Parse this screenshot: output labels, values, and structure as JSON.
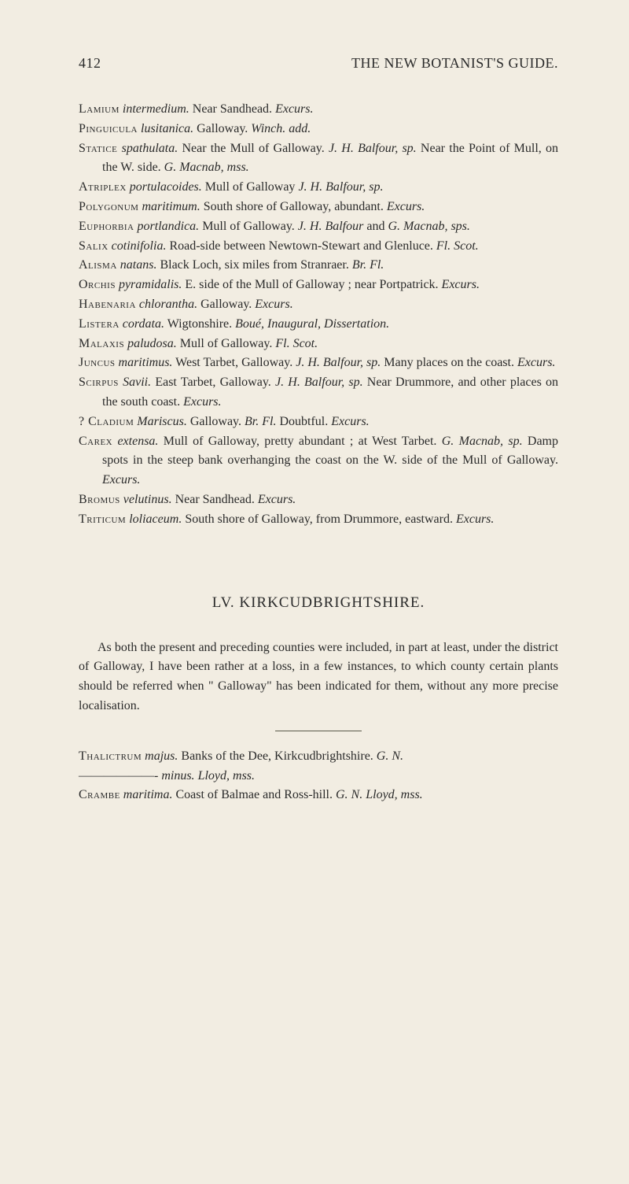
{
  "header": {
    "page_number": "412",
    "running_title": "THE NEW BOTANIST'S GUIDE."
  },
  "entries": [
    {
      "genus": "Lamium",
      "species": "intermedium.",
      "text": "Near Sandhead.",
      "auth": "Excurs."
    },
    {
      "genus": "Pinguicula",
      "species": "lusitanica.",
      "text": "Galloway.",
      "auth": "Winch. add."
    },
    {
      "genus": "Statice",
      "species": "spathulata.",
      "text_parts": [
        {
          "plain": "Near the Mull of Galloway. "
        },
        {
          "ital": "J. H. Balfour, sp."
        },
        {
          "plain": " Near the Point of Mull, on the W. side. "
        },
        {
          "ital": "G. Macnab, mss."
        }
      ]
    },
    {
      "genus": "Atriplex",
      "species": "portulacoides.",
      "text": "Mull of Galloway",
      "auth": "J. H. Balfour, sp."
    },
    {
      "genus": "Polygonum",
      "species": "maritimum.",
      "text": "South shore of Galloway, abundant.",
      "auth": "Excurs."
    },
    {
      "genus": "Euphorbia",
      "species": "portlandica.",
      "text_parts": [
        {
          "plain": "Mull of Galloway. "
        },
        {
          "ital": "J. H. Balfour"
        },
        {
          "plain": " and "
        },
        {
          "ital": "G. Macnab, sps."
        }
      ]
    },
    {
      "genus": "Salix",
      "species": "cotinifolia.",
      "text": "Road-side between Newtown-Stewart and Glenluce.",
      "auth": "Fl. Scot."
    },
    {
      "genus": "Alisma",
      "species": "natans.",
      "text": "Black Loch, six miles from Stranraer.",
      "auth": "Br. Fl."
    },
    {
      "genus": "Orchis",
      "species": "pyramidalis.",
      "text": "E. side of the Mull of Galloway ; near Portpatrick.",
      "auth": "Excurs."
    },
    {
      "genus": "Habenaria",
      "species": "chlorantha.",
      "text": "Galloway.",
      "auth": "Excurs."
    },
    {
      "genus": "Listera",
      "species": "cordata.",
      "text": "Wigtonshire.",
      "auth": "Boué, Inaugural, Dissertation."
    },
    {
      "genus": "Malaxis",
      "species": "paludosa.",
      "text": "Mull of Galloway.",
      "auth": "Fl. Scot."
    },
    {
      "genus": "Juncus",
      "species": "maritimus.",
      "text_parts": [
        {
          "plain": "West Tarbet, Galloway. "
        },
        {
          "ital": "J. H. Balfour, sp."
        },
        {
          "plain": " Many places on the coast. "
        },
        {
          "ital": "Excurs."
        }
      ]
    },
    {
      "genus": "Scirpus",
      "species": "Savii.",
      "text_parts": [
        {
          "plain": "East Tarbet, Galloway. "
        },
        {
          "ital": "J. H. Balfour, sp."
        },
        {
          "plain": " Near Drummore, and other places on the south coast. "
        },
        {
          "ital": "Excurs."
        }
      ]
    },
    {
      "genus": "? Cladium",
      "species": "Mariscus.",
      "text_parts": [
        {
          "plain": "Galloway. "
        },
        {
          "ital": "Br. Fl."
        },
        {
          "plain": " Doubtful. "
        },
        {
          "ital": "Excurs."
        }
      ]
    },
    {
      "genus": "Carex",
      "species": "extensa.",
      "text_parts": [
        {
          "plain": "Mull of Galloway, pretty abundant ; at West Tarbet. "
        },
        {
          "ital": "G. Macnab, sp."
        },
        {
          "plain": " Damp spots in the steep bank overhanging the coast on the W. side of the Mull of Galloway. "
        },
        {
          "ital": "Excurs."
        }
      ]
    },
    {
      "genus": "Bromus",
      "species": "velutinus.",
      "text": "Near Sandhead.",
      "auth": "Excurs."
    },
    {
      "genus": "Triticum",
      "species": "loliaceum.",
      "text": "South shore of Galloway, from Drummore, eastward.",
      "auth": "Excurs."
    }
  ],
  "section": {
    "title": "LV. KIRKCUDBRIGHTSHIRE.",
    "para": "As both the present and preceding counties were included, in part at least, under the district of Galloway, I have been rather at a loss, in a few instances, to which county certain plants should be referred when \" Galloway\" has been indicated for them, without any more precise localisation."
  },
  "bottom_entries": [
    {
      "genus": "Thalictrum",
      "species": "majus.",
      "bracket": true,
      "text": "Banks of the Dee, Kirkcudbrightshire.",
      "auth": "G. N."
    },
    {
      "genus": "",
      "species": "- minus.",
      "bracket": true,
      "text_parts": [
        {
          "ital": "Lloyd, mss."
        }
      ]
    },
    {
      "genus": "Crambe",
      "species": "maritima.",
      "text_parts": [
        {
          "plain": "Coast of Balmae and Ross-hill. "
        },
        {
          "ital": "G. N. Lloyd, mss."
        }
      ]
    }
  ],
  "colors": {
    "background": "#f2ede2",
    "text": "#2a2a2a",
    "rule": "#5a5a4a"
  }
}
